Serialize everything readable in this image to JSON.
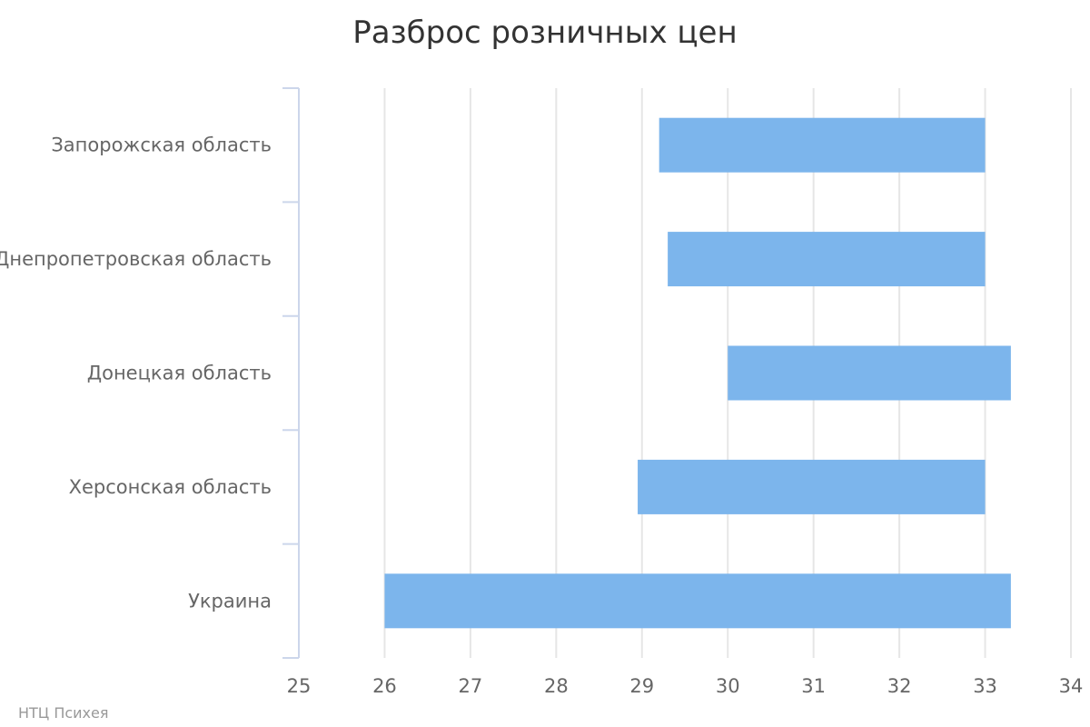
{
  "chart_data": {
    "type": "bar",
    "orientation": "horizontal",
    "title": "Разброс розничных цен",
    "credit": "НТЦ Психея",
    "categories": [
      "Запорожская область",
      "Днепропетровская область",
      "Донецкая область",
      "Херсонская область",
      "Украина"
    ],
    "series": [
      {
        "low": [
          29.2,
          29.3,
          30.0,
          28.95,
          26.0
        ],
        "high": [
          33.0,
          33.0,
          33.3,
          33.0,
          33.3
        ]
      }
    ],
    "xlim": [
      25,
      34
    ],
    "ticks": [
      "25",
      "26",
      "27",
      "28",
      "29",
      "30",
      "31",
      "32",
      "33",
      "34"
    ],
    "grid": true,
    "legend": "none",
    "colors": {
      "bar": "#7cb5ec",
      "grid": "#e6e6e6",
      "axis": "#ccd6eb",
      "title": "#333333",
      "label": "#666666",
      "credit": "#999999"
    }
  }
}
